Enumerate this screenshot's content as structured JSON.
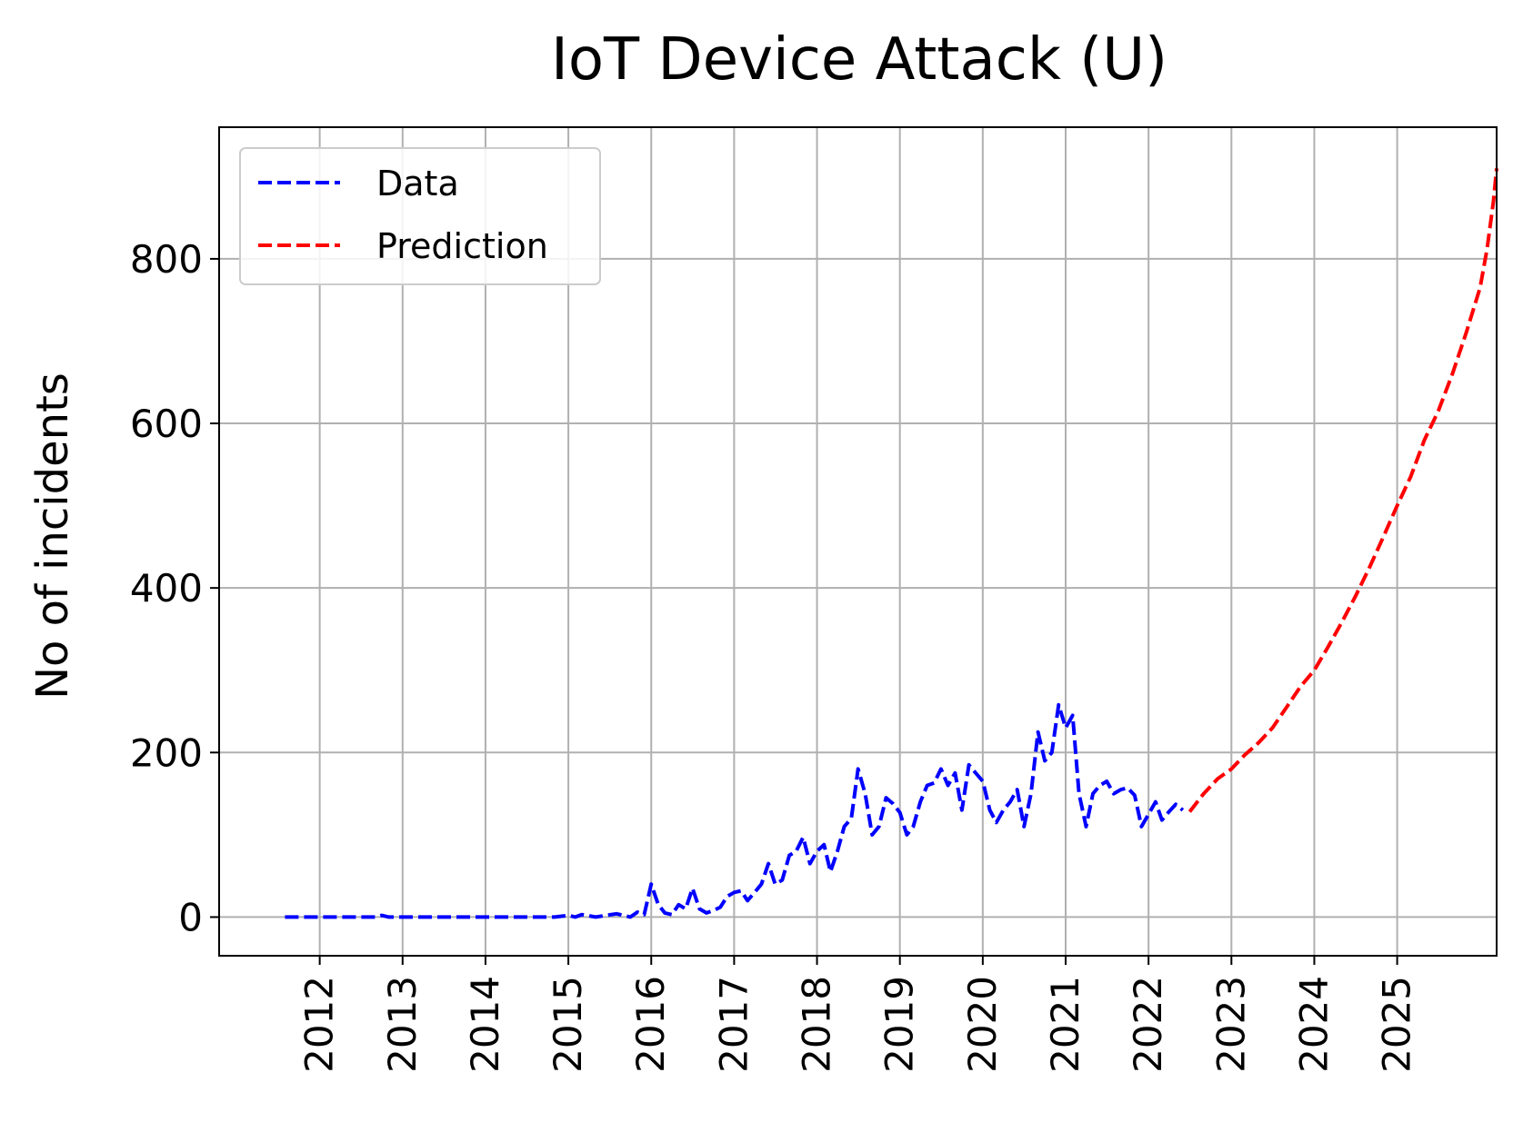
{
  "chart_data": {
    "type": "line",
    "title": "IoT Device Attack (U)",
    "xlabel": "",
    "ylabel": "No of incidents",
    "x_axis_type": "date",
    "xlim": [
      "2010-10-15",
      "2026-03-15"
    ],
    "ylim": [
      -47,
      960
    ],
    "x_ticks": [
      "2012",
      "2013",
      "2014",
      "2015",
      "2016",
      "2017",
      "2018",
      "2019",
      "2020",
      "2021",
      "2022",
      "2023",
      "2024",
      "2025"
    ],
    "y_ticks": [
      0,
      200,
      400,
      600,
      800
    ],
    "grid": true,
    "legend_position": "top-left",
    "series": [
      {
        "name": "Data",
        "color": "#0000ff",
        "line_style": "dashed",
        "points": [
          [
            "2011-08-01",
            0
          ],
          [
            "2012-01-01",
            0
          ],
          [
            "2012-06-01",
            0
          ],
          [
            "2012-09-01",
            0
          ],
          [
            "2012-10-01",
            2
          ],
          [
            "2012-11-01",
            0
          ],
          [
            "2013-06-01",
            0
          ],
          [
            "2014-01-01",
            0
          ],
          [
            "2014-06-01",
            0
          ],
          [
            "2014-11-01",
            0
          ],
          [
            "2015-01-01",
            2
          ],
          [
            "2015-02-01",
            0
          ],
          [
            "2015-03-01",
            3
          ],
          [
            "2015-05-01",
            0
          ],
          [
            "2015-08-01",
            4
          ],
          [
            "2015-10-01",
            0
          ],
          [
            "2015-11-01",
            6
          ],
          [
            "2015-12-01",
            3
          ],
          [
            "2016-01-01",
            40
          ],
          [
            "2016-02-01",
            15
          ],
          [
            "2016-03-01",
            5
          ],
          [
            "2016-04-01",
            3
          ],
          [
            "2016-05-01",
            15
          ],
          [
            "2016-06-01",
            10
          ],
          [
            "2016-07-01",
            35
          ],
          [
            "2016-08-01",
            10
          ],
          [
            "2016-09-01",
            5
          ],
          [
            "2016-10-01",
            8
          ],
          [
            "2016-11-01",
            12
          ],
          [
            "2016-12-01",
            25
          ],
          [
            "2017-01-01",
            30
          ],
          [
            "2017-02-01",
            32
          ],
          [
            "2017-03-01",
            20
          ],
          [
            "2017-04-01",
            30
          ],
          [
            "2017-05-01",
            40
          ],
          [
            "2017-06-01",
            65
          ],
          [
            "2017-07-01",
            40
          ],
          [
            "2017-08-01",
            45
          ],
          [
            "2017-09-01",
            75
          ],
          [
            "2017-10-01",
            80
          ],
          [
            "2017-11-01",
            97
          ],
          [
            "2017-12-01",
            65
          ],
          [
            "2018-01-01",
            80
          ],
          [
            "2018-02-01",
            88
          ],
          [
            "2018-03-01",
            55
          ],
          [
            "2018-04-01",
            80
          ],
          [
            "2018-05-01",
            110
          ],
          [
            "2018-06-01",
            120
          ],
          [
            "2018-07-01",
            180
          ],
          [
            "2018-08-01",
            150
          ],
          [
            "2018-09-01",
            100
          ],
          [
            "2018-10-01",
            110
          ],
          [
            "2018-11-01",
            145
          ],
          [
            "2018-12-01",
            138
          ],
          [
            "2019-01-01",
            127
          ],
          [
            "2019-02-01",
            100
          ],
          [
            "2019-03-01",
            110
          ],
          [
            "2019-04-01",
            140
          ],
          [
            "2019-05-01",
            160
          ],
          [
            "2019-06-01",
            163
          ],
          [
            "2019-07-01",
            180
          ],
          [
            "2019-08-01",
            160
          ],
          [
            "2019-09-01",
            175
          ],
          [
            "2019-10-01",
            130
          ],
          [
            "2019-11-01",
            185
          ],
          [
            "2019-12-01",
            175
          ],
          [
            "2020-01-01",
            165
          ],
          [
            "2020-02-01",
            130
          ],
          [
            "2020-03-01",
            115
          ],
          [
            "2020-04-01",
            130
          ],
          [
            "2020-05-01",
            140
          ],
          [
            "2020-06-01",
            155
          ],
          [
            "2020-07-01",
            110
          ],
          [
            "2020-08-01",
            150
          ],
          [
            "2020-09-01",
            225
          ],
          [
            "2020-10-01",
            190
          ],
          [
            "2020-11-01",
            200
          ],
          [
            "2020-12-01",
            258
          ],
          [
            "2021-01-01",
            230
          ],
          [
            "2021-02-01",
            245
          ],
          [
            "2021-03-01",
            150
          ],
          [
            "2021-04-01",
            110
          ],
          [
            "2021-05-01",
            150
          ],
          [
            "2021-06-01",
            160
          ],
          [
            "2021-07-01",
            165
          ],
          [
            "2021-08-01",
            150
          ],
          [
            "2021-09-01",
            155
          ],
          [
            "2021-10-01",
            157
          ],
          [
            "2021-11-01",
            148
          ],
          [
            "2021-12-01",
            110
          ],
          [
            "2022-01-01",
            125
          ],
          [
            "2022-02-01",
            140
          ],
          [
            "2022-03-01",
            118
          ],
          [
            "2022-04-01",
            128
          ],
          [
            "2022-05-01",
            137
          ],
          [
            "2022-06-01",
            130
          ]
        ]
      },
      {
        "name": "Prediction",
        "color": "#ff0000",
        "line_style": "dashed",
        "points": [
          [
            "2022-07-01",
            128
          ],
          [
            "2022-09-01",
            150
          ],
          [
            "2022-11-01",
            168
          ],
          [
            "2023-01-01",
            180
          ],
          [
            "2023-03-01",
            197
          ],
          [
            "2023-05-01",
            212
          ],
          [
            "2023-07-01",
            230
          ],
          [
            "2023-09-01",
            255
          ],
          [
            "2023-11-01",
            280
          ],
          [
            "2024-01-01",
            300
          ],
          [
            "2024-03-01",
            328
          ],
          [
            "2024-05-01",
            358
          ],
          [
            "2024-07-01",
            390
          ],
          [
            "2024-09-01",
            425
          ],
          [
            "2024-11-01",
            462
          ],
          [
            "2025-01-01",
            500
          ],
          [
            "2025-03-01",
            535
          ],
          [
            "2025-05-01",
            580
          ],
          [
            "2025-07-01",
            615
          ],
          [
            "2025-09-01",
            660
          ],
          [
            "2025-11-01",
            710
          ],
          [
            "2026-01-01",
            765
          ],
          [
            "2026-02-01",
            812
          ],
          [
            "2026-03-01",
            870
          ],
          [
            "2026-03-15",
            910
          ]
        ]
      }
    ]
  }
}
